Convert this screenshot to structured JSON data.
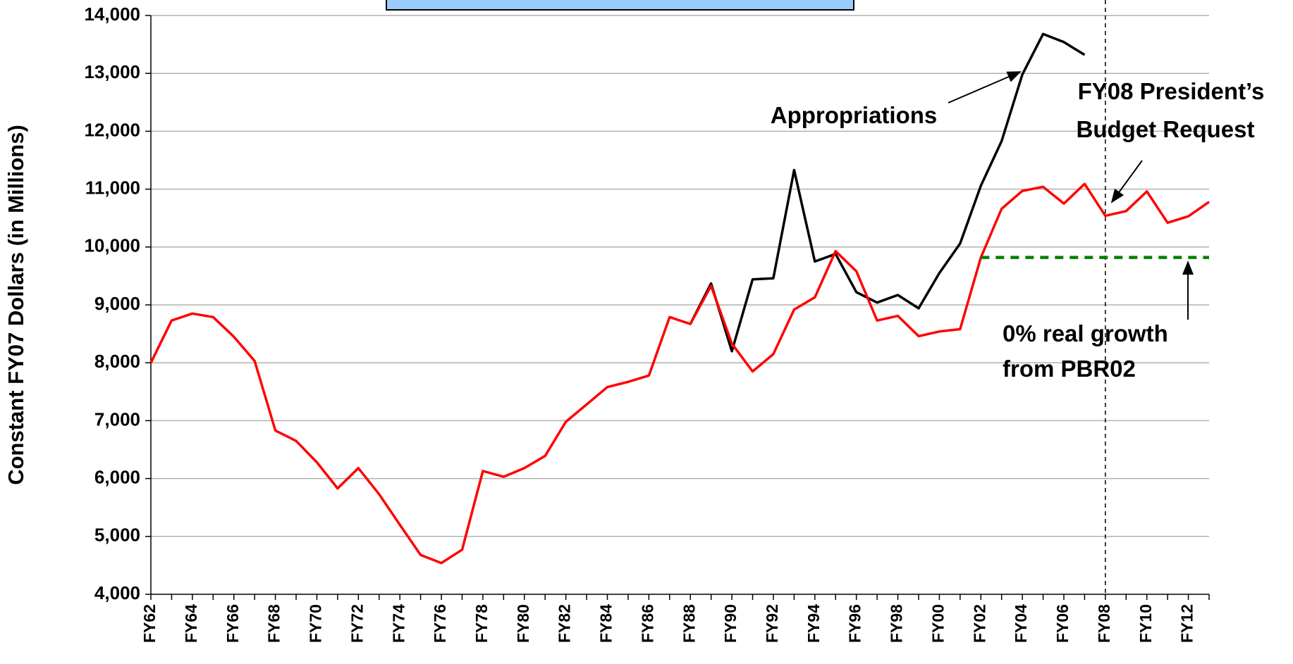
{
  "chart_data": {
    "type": "line",
    "y_label": "Constant FY07 Dollars (in Millions)",
    "categories": [
      "FY62",
      null,
      "FY64",
      null,
      "FY66",
      null,
      "FY68",
      null,
      "FY70",
      null,
      "FY72",
      null,
      "FY74",
      null,
      "FY76",
      null,
      "FY78",
      null,
      "FY80",
      null,
      "FY82",
      null,
      "FY84",
      null,
      "FY86",
      null,
      "FY88",
      null,
      "FY90",
      null,
      "FY92",
      null,
      "FY94",
      null,
      "FY96",
      null,
      "FY98",
      null,
      "FY00",
      null,
      "FY02",
      null,
      "FY04",
      null,
      "FY06",
      null,
      "FY08",
      null,
      "FY10",
      null,
      "FY12",
      null
    ],
    "series": [
      {
        "color": "#000000",
        "values": [
          null,
          null,
          null,
          null,
          null,
          null,
          null,
          null,
          null,
          null,
          null,
          null,
          null,
          null,
          null,
          null,
          null,
          null,
          null,
          null,
          null,
          null,
          null,
          null,
          null,
          null,
          8670,
          9370,
          8200,
          9440,
          9460,
          11330,
          9750,
          9880,
          9220,
          9040,
          9170,
          8940,
          9550,
          10060,
          11060,
          11830,
          12980,
          13680,
          13540,
          13320,
          null,
          null,
          null,
          null,
          null,
          null
        ]
      },
      {
        "color": "#ff0000",
        "values": [
          8000,
          8730,
          8850,
          8790,
          8450,
          8030,
          6830,
          6650,
          6280,
          5830,
          6180,
          5730,
          5200,
          4680,
          4540,
          4770,
          6130,
          6030,
          6180,
          6390,
          6980,
          7280,
          7580,
          7670,
          7780,
          8790,
          8670,
          9330,
          8330,
          7850,
          8150,
          8920,
          9130,
          9930,
          9580,
          8730,
          8810,
          8460,
          8540,
          8580,
          9820,
          10660,
          10970,
          11040,
          10750,
          11090,
          10540,
          10620,
          10960,
          10420,
          10530,
          10780
        ]
      },
      {
        "color": "#008000",
        "dash": true,
        "values": [
          null,
          null,
          null,
          null,
          null,
          null,
          null,
          null,
          null,
          null,
          null,
          null,
          null,
          null,
          null,
          null,
          null,
          null,
          null,
          null,
          null,
          null,
          null,
          null,
          null,
          null,
          null,
          null,
          null,
          null,
          null,
          null,
          null,
          null,
          null,
          null,
          null,
          null,
          null,
          null,
          9820,
          9820,
          9820,
          9820,
          9820,
          9820,
          9820,
          9820,
          9820,
          9820,
          9820,
          9820
        ]
      }
    ],
    "ylim": [
      4000,
      14000
    ],
    "yticks": [
      {
        "value": 4000,
        "label": "4,000"
      },
      {
        "value": 5000,
        "label": "5,000"
      },
      {
        "value": 6000,
        "label": "6,000"
      },
      {
        "value": 7000,
        "label": "7,000"
      },
      {
        "value": 8000,
        "label": "8,000"
      },
      {
        "value": 9000,
        "label": "9,000"
      },
      {
        "value": 10000,
        "label": "10,000"
      },
      {
        "value": 11000,
        "label": "11,000"
      },
      {
        "value": 12000,
        "label": "12,000"
      },
      {
        "value": 13000,
        "label": "13,000"
      },
      {
        "value": 14000,
        "label": "14,000"
      }
    ],
    "grid": true,
    "vline": "FY08",
    "annotations": [
      "Appropriations",
      "FY08 President’s",
      "Budget Request",
      "0% real growth",
      "from PBR02"
    ]
  }
}
